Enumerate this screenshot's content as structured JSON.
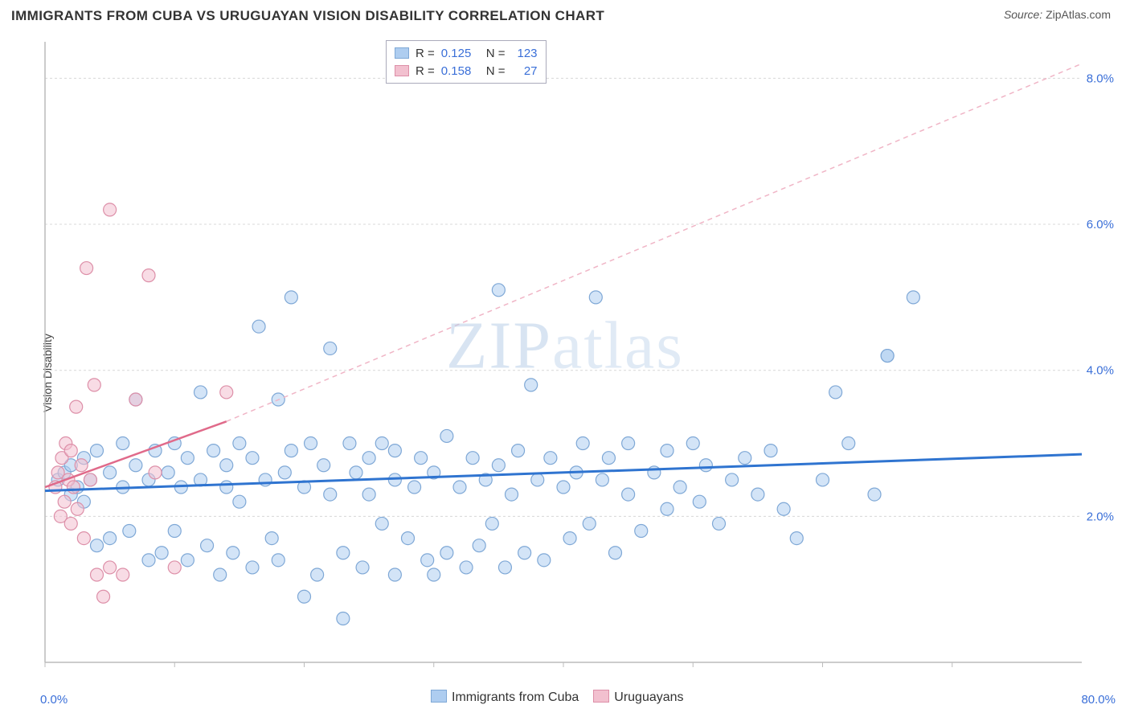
{
  "header": {
    "title": "IMMIGRANTS FROM CUBA VS URUGUAYAN VISION DISABILITY CORRELATION CHART",
    "source_label": "Source:",
    "source_value": "ZipAtlas.com"
  },
  "axes": {
    "ylabel": "Vision Disability",
    "xlim": [
      0,
      80
    ],
    "ylim": [
      0,
      8.5
    ],
    "y_ticks": [
      2.0,
      4.0,
      6.0,
      8.0
    ],
    "y_tick_labels": [
      "2.0%",
      "4.0%",
      "6.0%",
      "8.0%"
    ],
    "x_ticks": [
      0,
      10,
      20,
      30,
      40,
      50,
      60,
      70
    ],
    "x_tick_labels": [
      "",
      "",
      "",
      "",
      "",
      "",
      "",
      ""
    ],
    "x_start_label": "0.0%",
    "x_end_label": "80.0%",
    "grid_color": "#d8d8d8",
    "axis_color": "#bcbcbc",
    "background_color": "#ffffff",
    "ytick_label_color": "#3a6fd8",
    "label_fontsize": 14
  },
  "series": {
    "cuba": {
      "name": "Immigrants from Cuba",
      "color_fill": "#aecdf0",
      "color_stroke": "#7fa8d6",
      "marker_radius": 8,
      "fill_opacity": 0.55,
      "trend": {
        "x1": 0,
        "y1": 2.35,
        "x2": 80,
        "y2": 2.85,
        "color": "#2f74d0",
        "width": 3,
        "dash": "none"
      },
      "points": [
        [
          1,
          2.5
        ],
        [
          1.5,
          2.6
        ],
        [
          2,
          2.7
        ],
        [
          2,
          2.3
        ],
        [
          2.5,
          2.4
        ],
        [
          3,
          2.8
        ],
        [
          3,
          2.2
        ],
        [
          3.5,
          2.5
        ],
        [
          4,
          2.9
        ],
        [
          4,
          1.6
        ],
        [
          5,
          2.6
        ],
        [
          5,
          1.7
        ],
        [
          6,
          3.0
        ],
        [
          6,
          2.4
        ],
        [
          6.5,
          1.8
        ],
        [
          7,
          2.7
        ],
        [
          7,
          3.6
        ],
        [
          8,
          1.4
        ],
        [
          8,
          2.5
        ],
        [
          8.5,
          2.9
        ],
        [
          9,
          1.5
        ],
        [
          9.5,
          2.6
        ],
        [
          10,
          3.0
        ],
        [
          10,
          1.8
        ],
        [
          10.5,
          2.4
        ],
        [
          11,
          1.4
        ],
        [
          11,
          2.8
        ],
        [
          12,
          3.7
        ],
        [
          12,
          2.5
        ],
        [
          12.5,
          1.6
        ],
        [
          13,
          2.9
        ],
        [
          13.5,
          1.2
        ],
        [
          14,
          2.4
        ],
        [
          14,
          2.7
        ],
        [
          14.5,
          1.5
        ],
        [
          15,
          3.0
        ],
        [
          15,
          2.2
        ],
        [
          16,
          1.3
        ],
        [
          16,
          2.8
        ],
        [
          16.5,
          4.6
        ],
        [
          17,
          2.5
        ],
        [
          17.5,
          1.7
        ],
        [
          18,
          3.6
        ],
        [
          18,
          1.4
        ],
        [
          18.5,
          2.6
        ],
        [
          19,
          2.9
        ],
        [
          19,
          5.0
        ],
        [
          20,
          0.9
        ],
        [
          20,
          2.4
        ],
        [
          20.5,
          3.0
        ],
        [
          21,
          1.2
        ],
        [
          21.5,
          2.7
        ],
        [
          22,
          2.3
        ],
        [
          22,
          4.3
        ],
        [
          23,
          1.5
        ],
        [
          23,
          0.6
        ],
        [
          23.5,
          3.0
        ],
        [
          24,
          2.6
        ],
        [
          24.5,
          1.3
        ],
        [
          25,
          2.8
        ],
        [
          25,
          2.3
        ],
        [
          26,
          1.9
        ],
        [
          26,
          3.0
        ],
        [
          27,
          2.5
        ],
        [
          27,
          1.2
        ],
        [
          27,
          2.9
        ],
        [
          28,
          1.7
        ],
        [
          28.5,
          2.4
        ],
        [
          29,
          2.8
        ],
        [
          29.5,
          1.4
        ],
        [
          30,
          2.6
        ],
        [
          30,
          1.2
        ],
        [
          31,
          3.1
        ],
        [
          31,
          1.5
        ],
        [
          32,
          2.4
        ],
        [
          32.5,
          1.3
        ],
        [
          33,
          2.8
        ],
        [
          33.5,
          1.6
        ],
        [
          34,
          2.5
        ],
        [
          34.5,
          1.9
        ],
        [
          35,
          2.7
        ],
        [
          35,
          5.1
        ],
        [
          35.5,
          1.3
        ],
        [
          36,
          2.3
        ],
        [
          36.5,
          2.9
        ],
        [
          37,
          1.5
        ],
        [
          37.5,
          3.8
        ],
        [
          38,
          2.5
        ],
        [
          38.5,
          1.4
        ],
        [
          39,
          2.8
        ],
        [
          40,
          2.4
        ],
        [
          40.5,
          1.7
        ],
        [
          41,
          2.6
        ],
        [
          41.5,
          3.0
        ],
        [
          42,
          1.9
        ],
        [
          42.5,
          5.0
        ],
        [
          43,
          2.5
        ],
        [
          43.5,
          2.8
        ],
        [
          44,
          1.5
        ],
        [
          45,
          2.3
        ],
        [
          45,
          3.0
        ],
        [
          46,
          1.8
        ],
        [
          47,
          2.6
        ],
        [
          48,
          2.9
        ],
        [
          48,
          2.1
        ],
        [
          49,
          2.4
        ],
        [
          50,
          3.0
        ],
        [
          50.5,
          2.2
        ],
        [
          51,
          2.7
        ],
        [
          52,
          1.9
        ],
        [
          53,
          2.5
        ],
        [
          54,
          2.8
        ],
        [
          55,
          2.3
        ],
        [
          56,
          2.9
        ],
        [
          57,
          2.1
        ],
        [
          58,
          1.7
        ],
        [
          60,
          2.5
        ],
        [
          61,
          3.7
        ],
        [
          62,
          3.0
        ],
        [
          64,
          2.3
        ],
        [
          65,
          4.2
        ],
        [
          65,
          4.2
        ],
        [
          67,
          5.0
        ]
      ]
    },
    "uruguay": {
      "name": "Uruguayans",
      "color_fill": "#f2c0cf",
      "color_stroke": "#dd8fa8",
      "marker_radius": 8,
      "fill_opacity": 0.55,
      "trend_solid": {
        "x1": 0,
        "y1": 2.4,
        "x2": 14,
        "y2": 3.3,
        "color": "#e06a8a",
        "width": 2.5,
        "dash": "none"
      },
      "trend_dash": {
        "x1": 14,
        "y1": 3.3,
        "x2": 80,
        "y2": 8.2,
        "color": "#f0b5c6",
        "width": 1.5,
        "dash": "6,5"
      },
      "points": [
        [
          0.8,
          2.4
        ],
        [
          1,
          2.6
        ],
        [
          1.2,
          2.0
        ],
        [
          1.3,
          2.8
        ],
        [
          1.5,
          2.2
        ],
        [
          1.6,
          3.0
        ],
        [
          1.8,
          2.5
        ],
        [
          2,
          2.9
        ],
        [
          2,
          1.9
        ],
        [
          2.2,
          2.4
        ],
        [
          2.4,
          3.5
        ],
        [
          2.5,
          2.1
        ],
        [
          2.8,
          2.7
        ],
        [
          3,
          1.7
        ],
        [
          3.2,
          5.4
        ],
        [
          3.5,
          2.5
        ],
        [
          3.8,
          3.8
        ],
        [
          4,
          1.2
        ],
        [
          4.5,
          0.9
        ],
        [
          5,
          6.2
        ],
        [
          5,
          1.3
        ],
        [
          6,
          1.2
        ],
        [
          7,
          3.6
        ],
        [
          8,
          5.3
        ],
        [
          8.5,
          2.6
        ],
        [
          10,
          1.3
        ],
        [
          14,
          3.7
        ]
      ]
    }
  },
  "stats_legend": {
    "rows": [
      {
        "swatch_fill": "#aecdf0",
        "swatch_stroke": "#7fa8d6",
        "r_label": "R =",
        "r_value": "0.125",
        "n_label": "N =",
        "n_value": "123"
      },
      {
        "swatch_fill": "#f2c0cf",
        "swatch_stroke": "#dd8fa8",
        "r_label": "R =",
        "r_value": "0.158",
        "n_label": "N =",
        "n_value": "27"
      }
    ]
  },
  "bottom_legend": {
    "items": [
      {
        "swatch_fill": "#aecdf0",
        "swatch_stroke": "#7fa8d6",
        "label": "Immigrants from Cuba"
      },
      {
        "swatch_fill": "#f2c0cf",
        "swatch_stroke": "#dd8fa8",
        "label": "Uruguayans"
      }
    ]
  },
  "watermark": {
    "text_a": "ZIP",
    "text_b": "atlas"
  }
}
